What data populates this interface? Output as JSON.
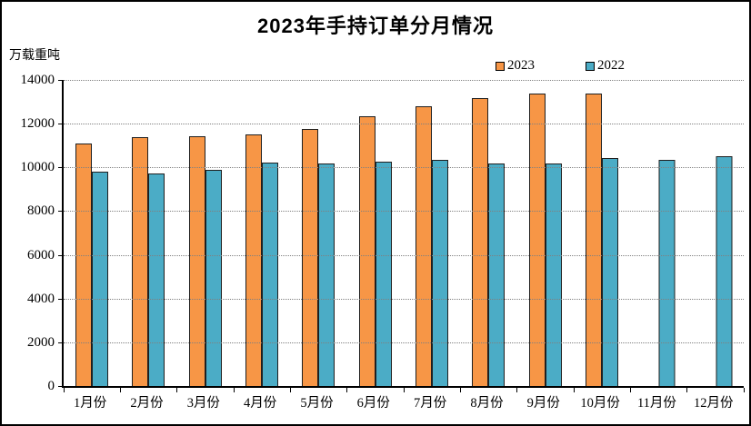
{
  "title": "2023年手持订单分月情况",
  "unit_label": "万载重吨",
  "colors": {
    "series_2023": "#F79646",
    "series_2022": "#4BACC6",
    "bar_border": "#1f1f1f",
    "gridline": "#808080",
    "axis": "#000000",
    "background": "#ffffff"
  },
  "chart_data": {
    "type": "bar",
    "title": "2023年手持订单分月情况",
    "ylabel": "万载重吨",
    "xlabel": "",
    "categories": [
      "1月份",
      "2月份",
      "3月份",
      "4月份",
      "5月份",
      "6月份",
      "7月份",
      "8月份",
      "9月份",
      "10月份",
      "11月份",
      "12月份"
    ],
    "series": [
      {
        "name": "2023",
        "color": "#F79646",
        "values": [
          11110,
          11400,
          11450,
          11510,
          11790,
          12380,
          12830,
          13210,
          13390,
          13400,
          null,
          null
        ]
      },
      {
        "name": "2022",
        "color": "#4BACC6",
        "values": [
          9830,
          9760,
          9890,
          10250,
          10210,
          10270,
          10350,
          10210,
          10210,
          10440,
          10350,
          10550
        ]
      }
    ],
    "ylim": [
      0,
      14000
    ],
    "yticks": [
      0,
      2000,
      4000,
      6000,
      8000,
      10000,
      12000,
      14000
    ],
    "grid": "horizontal-dotted",
    "legend_position": "top-right-inside"
  }
}
